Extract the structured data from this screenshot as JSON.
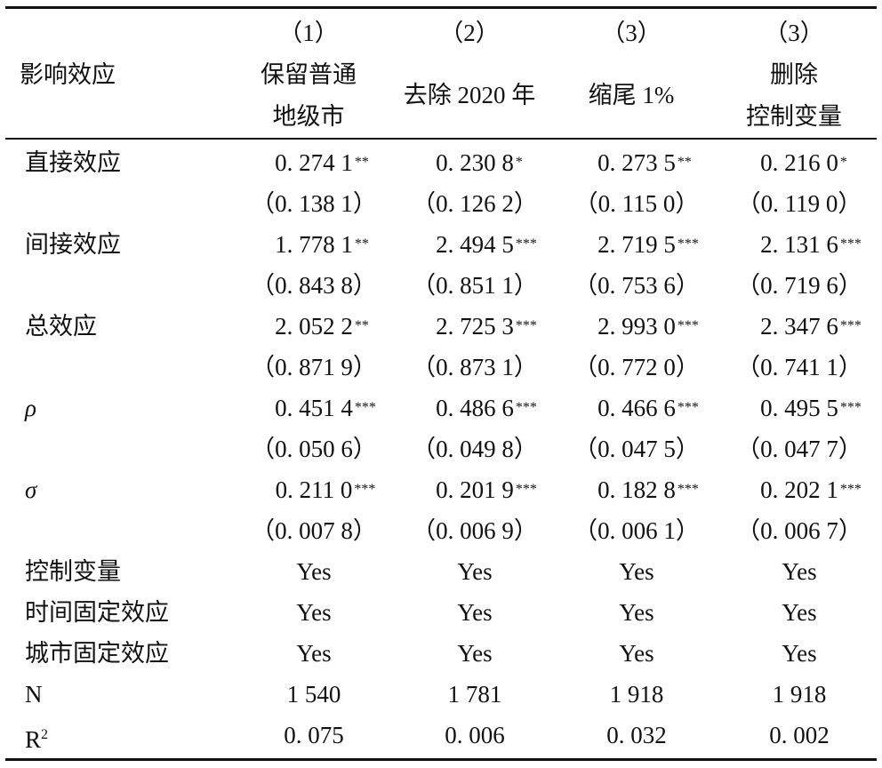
{
  "header": {
    "row_label": "影响效应",
    "columns": [
      {
        "num": "（1）",
        "line1": "保留普通",
        "line2": "地级市",
        "single": ""
      },
      {
        "num": "（2）",
        "line1": "",
        "line2": "",
        "single": "去除 2020 年"
      },
      {
        "num": "（3）",
        "line1": "",
        "line2": "",
        "single": "缩尾 1%"
      },
      {
        "num": "（3）",
        "line1": "删除",
        "line2": "控制变量",
        "single": ""
      }
    ]
  },
  "rows": [
    {
      "label": "直接效应",
      "cells": [
        {
          "v": "0. 274 1",
          "s": "**"
        },
        {
          "v": "0. 230 8",
          "s": "*"
        },
        {
          "v": "0. 273 5",
          "s": "**"
        },
        {
          "v": "0. 216 0",
          "s": "*"
        }
      ]
    },
    {
      "label": "",
      "cells": [
        {
          "v": "（0. 138 1）",
          "s": ""
        },
        {
          "v": "（0. 126 2）",
          "s": ""
        },
        {
          "v": "（0. 115 0）",
          "s": ""
        },
        {
          "v": "（0. 119 0）",
          "s": ""
        }
      ]
    },
    {
      "label": "间接效应",
      "cells": [
        {
          "v": "1. 778 1",
          "s": "**"
        },
        {
          "v": "2. 494 5",
          "s": "***"
        },
        {
          "v": "2. 719 5",
          "s": "***"
        },
        {
          "v": "2. 131 6",
          "s": "***"
        }
      ]
    },
    {
      "label": "",
      "cells": [
        {
          "v": "（0. 843 8）",
          "s": ""
        },
        {
          "v": "（0. 851 1）",
          "s": ""
        },
        {
          "v": "（0. 753 6）",
          "s": ""
        },
        {
          "v": "（0. 719 6）",
          "s": ""
        }
      ]
    },
    {
      "label": "总效应",
      "cells": [
        {
          "v": "2. 052 2",
          "s": "**"
        },
        {
          "v": "2. 725 3",
          "s": "***"
        },
        {
          "v": "2. 993 0",
          "s": "***"
        },
        {
          "v": "2. 347 6",
          "s": "***"
        }
      ]
    },
    {
      "label": "",
      "cells": [
        {
          "v": "（0. 871 9）",
          "s": ""
        },
        {
          "v": "（0. 873 1）",
          "s": ""
        },
        {
          "v": "（0. 772 0）",
          "s": ""
        },
        {
          "v": "（0. 741 1）",
          "s": ""
        }
      ]
    },
    {
      "label": "ρ",
      "italic": true,
      "cells": [
        {
          "v": "0. 451 4",
          "s": "***"
        },
        {
          "v": "0. 486 6",
          "s": "***"
        },
        {
          "v": "0. 466 6",
          "s": "***"
        },
        {
          "v": "0. 495 5",
          "s": "***"
        }
      ]
    },
    {
      "label": "",
      "cells": [
        {
          "v": "（0. 050 6）",
          "s": ""
        },
        {
          "v": "（0. 049 8）",
          "s": ""
        },
        {
          "v": "（0. 047 5）",
          "s": ""
        },
        {
          "v": "（0. 047 7）",
          "s": ""
        }
      ]
    },
    {
      "label": "σ",
      "italic": true,
      "cells": [
        {
          "v": "0. 211 0",
          "s": "***"
        },
        {
          "v": "0. 201 9",
          "s": "***"
        },
        {
          "v": "0. 182 8",
          "s": "***"
        },
        {
          "v": "0. 202 1",
          "s": "***"
        }
      ]
    },
    {
      "label": "",
      "cells": [
        {
          "v": "（0. 007 8）",
          "s": ""
        },
        {
          "v": "（0. 006 9）",
          "s": ""
        },
        {
          "v": "（0. 006 1）",
          "s": ""
        },
        {
          "v": "（0. 006 7）",
          "s": ""
        }
      ]
    },
    {
      "label": "控制变量",
      "cells": [
        {
          "v": "Yes",
          "s": ""
        },
        {
          "v": "Yes",
          "s": ""
        },
        {
          "v": "Yes",
          "s": ""
        },
        {
          "v": "Yes",
          "s": ""
        }
      ]
    },
    {
      "label": "时间固定效应",
      "cells": [
        {
          "v": "Yes",
          "s": ""
        },
        {
          "v": "Yes",
          "s": ""
        },
        {
          "v": "Yes",
          "s": ""
        },
        {
          "v": "Yes",
          "s": ""
        }
      ]
    },
    {
      "label": "城市固定效应",
      "cells": [
        {
          "v": "Yes",
          "s": ""
        },
        {
          "v": "Yes",
          "s": ""
        },
        {
          "v": "Yes",
          "s": ""
        },
        {
          "v": "Yes",
          "s": ""
        }
      ]
    },
    {
      "label": "N",
      "cells": [
        {
          "v": "1 540",
          "s": ""
        },
        {
          "v": "1 781",
          "s": ""
        },
        {
          "v": "1 918",
          "s": ""
        },
        {
          "v": "1 918",
          "s": ""
        }
      ]
    },
    {
      "label": "R",
      "label_sup": "2",
      "cells": [
        {
          "v": "0. 075",
          "s": ""
        },
        {
          "v": "0. 006",
          "s": ""
        },
        {
          "v": "0. 032",
          "s": ""
        },
        {
          "v": "0. 002",
          "s": ""
        }
      ]
    }
  ]
}
